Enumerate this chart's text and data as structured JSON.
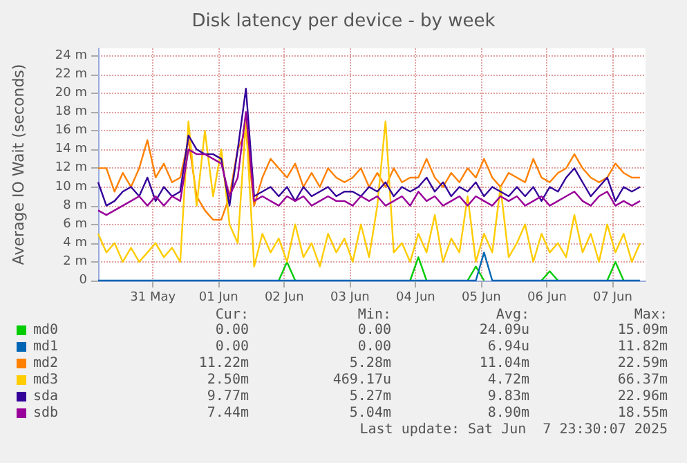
{
  "chart_data": {
    "type": "line",
    "title": "Disk latency per device - by week",
    "ylabel": "Average IO Wait (seconds)",
    "x": [
      "2025-05-30T04:00",
      "2025-05-30T07:00",
      "2025-05-30T10:00",
      "2025-05-30T13:00",
      "2025-05-30T16:00",
      "2025-05-30T19:00",
      "2025-05-30T22:00",
      "2025-05-31T01:00",
      "2025-05-31T04:00",
      "2025-05-31T07:00",
      "2025-05-31T10:00",
      "2025-05-31T13:00",
      "2025-05-31T16:00",
      "2025-05-31T19:00",
      "2025-05-31T22:00",
      "2025-06-01T01:00",
      "2025-06-01T04:00",
      "2025-06-01T07:00",
      "2025-06-01T10:00",
      "2025-06-01T13:00",
      "2025-06-01T16:00",
      "2025-06-01T19:00",
      "2025-06-01T22:00",
      "2025-06-02T01:00",
      "2025-06-02T04:00",
      "2025-06-02T07:00",
      "2025-06-02T10:00",
      "2025-06-02T13:00",
      "2025-06-02T16:00",
      "2025-06-02T19:00",
      "2025-06-02T22:00",
      "2025-06-03T01:00",
      "2025-06-03T04:00",
      "2025-06-03T07:00",
      "2025-06-03T10:00",
      "2025-06-03T13:00",
      "2025-06-03T16:00",
      "2025-06-03T19:00",
      "2025-06-03T22:00",
      "2025-06-04T01:00",
      "2025-06-04T04:00",
      "2025-06-04T07:00",
      "2025-06-04T10:00",
      "2025-06-04T13:00",
      "2025-06-04T16:00",
      "2025-06-04T19:00",
      "2025-06-04T22:00",
      "2025-06-05T01:00",
      "2025-06-05T04:00",
      "2025-06-05T07:00",
      "2025-06-05T10:00",
      "2025-06-05T13:00",
      "2025-06-05T16:00",
      "2025-06-05T19:00",
      "2025-06-05T22:00",
      "2025-06-06T01:00",
      "2025-06-06T04:00",
      "2025-06-06T07:00",
      "2025-06-06T10:00",
      "2025-06-06T13:00",
      "2025-06-06T16:00",
      "2025-06-06T19:00",
      "2025-06-06T22:00",
      "2025-06-07T01:00",
      "2025-06-07T04:00",
      "2025-06-07T07:00",
      "2025-06-07T10:00"
    ],
    "series": [
      {
        "name": "md0",
        "color": "#00cc00",
        "values": [
          null,
          null,
          null,
          null,
          null,
          null,
          null,
          null,
          null,
          null,
          null,
          null,
          null,
          null,
          null,
          null,
          null,
          null,
          null,
          null,
          null,
          null,
          0,
          2,
          0,
          null,
          null,
          null,
          null,
          null,
          null,
          null,
          null,
          null,
          null,
          null,
          null,
          null,
          0,
          2.5,
          0,
          null,
          null,
          null,
          null,
          0,
          1.5,
          0,
          null,
          null,
          null,
          null,
          null,
          null,
          0,
          1,
          0,
          null,
          null,
          null,
          null,
          null,
          0,
          2,
          0,
          null,
          null
        ]
      },
      {
        "name": "md1",
        "color": "#0066b3",
        "values": [
          0,
          0,
          0,
          0,
          0,
          0,
          0,
          0,
          0,
          0,
          0,
          0,
          0,
          0,
          0,
          0,
          0,
          0,
          0,
          0,
          0,
          0,
          0,
          0,
          0,
          0,
          0,
          0,
          0,
          0,
          0,
          0,
          0,
          0,
          0,
          0,
          0,
          0,
          0,
          0,
          0,
          0,
          0,
          0,
          0,
          0,
          0,
          3,
          0,
          0,
          0,
          0,
          0,
          0,
          0,
          0,
          0,
          0,
          0,
          0,
          0,
          0,
          0,
          0,
          0,
          0,
          0
        ]
      },
      {
        "name": "md2",
        "color": "#ff8000",
        "values": [
          12,
          12,
          9.5,
          11.5,
          10,
          12,
          15,
          11,
          12.5,
          10.5,
          11,
          15,
          9,
          7.5,
          6.5,
          6.5,
          9,
          14,
          16,
          8,
          11,
          13,
          12,
          11,
          12.5,
          10,
          11.5,
          10,
          12,
          11,
          10.5,
          11,
          12,
          10,
          11.5,
          10,
          12,
          10.5,
          11,
          11,
          13,
          11,
          10,
          11.5,
          10.5,
          12,
          11,
          13,
          11,
          10,
          11.5,
          11,
          10.5,
          13,
          11,
          10.5,
          11.5,
          12,
          13.5,
          12,
          11,
          10.5,
          11,
          12.5,
          11.5,
          11,
          11
        ]
      },
      {
        "name": "md3",
        "color": "#ffcc00",
        "values": [
          5,
          3,
          4,
          2,
          3.5,
          2,
          3,
          4,
          2.5,
          3.5,
          2,
          17,
          8,
          16,
          9,
          14,
          6,
          4,
          17,
          1.5,
          5,
          3,
          4.5,
          2,
          6,
          2.5,
          4,
          1.5,
          5,
          3,
          4.5,
          2,
          6,
          2.5,
          8,
          17,
          3,
          4,
          2,
          5,
          3,
          7,
          2,
          4.5,
          3,
          9,
          2,
          5,
          3,
          10,
          2.5,
          4,
          6,
          2,
          5,
          3,
          4,
          2.5,
          7,
          3,
          5,
          2,
          6,
          3,
          5,
          2,
          4
        ]
      },
      {
        "name": "sda",
        "color": "#330099",
        "values": [
          10.5,
          8,
          8.5,
          9.5,
          10,
          9,
          11,
          8.5,
          10,
          9,
          9.5,
          15.5,
          14,
          13.5,
          13.5,
          13,
          8,
          14,
          20.5,
          9,
          9.5,
          10,
          9,
          10,
          8.5,
          10,
          9,
          9.5,
          10,
          9,
          9.5,
          9.5,
          9,
          10,
          9.5,
          10.5,
          9,
          10,
          9.5,
          10,
          11,
          9.5,
          10.5,
          9,
          10,
          9.5,
          10.5,
          9,
          10,
          9.5,
          9,
          10,
          9,
          10,
          8.5,
          10,
          9.5,
          11,
          12,
          10.5,
          9,
          10,
          11,
          8.5,
          10,
          9.5,
          10
        ]
      },
      {
        "name": "sdb",
        "color": "#990099",
        "values": [
          7.5,
          7,
          7.5,
          8,
          8.5,
          9,
          8,
          9,
          8,
          9,
          8.5,
          14,
          13.5,
          13.5,
          13,
          12.5,
          9,
          11,
          18,
          8.5,
          9,
          8.5,
          8,
          9,
          8.5,
          9,
          8,
          8.5,
          9,
          8.5,
          8.5,
          8,
          9,
          8.5,
          9,
          8,
          8.5,
          9,
          8,
          9.5,
          8.5,
          9,
          8,
          8.5,
          9,
          8,
          9,
          8.5,
          8,
          9,
          8.5,
          9,
          8,
          8.5,
          9,
          8,
          8.5,
          9,
          9.5,
          8.5,
          8,
          9,
          9.5,
          8,
          8.5,
          8,
          8.5
        ]
      }
    ],
    "xlim": [
      "2025-05-30T04:00",
      "2025-06-07T12:00"
    ],
    "xticks": [
      {
        "value": "2025-05-31",
        "label": "31 May"
      },
      {
        "value": "2025-06-01",
        "label": "01 Jun"
      },
      {
        "value": "2025-06-02",
        "label": "02 Jun"
      },
      {
        "value": "2025-06-03",
        "label": "03 Jun"
      },
      {
        "value": "2025-06-04",
        "label": "04 Jun"
      },
      {
        "value": "2025-06-05",
        "label": "05 Jun"
      },
      {
        "value": "2025-06-06",
        "label": "06 Jun"
      },
      {
        "value": "2025-06-07",
        "label": "07 Jun"
      }
    ],
    "ylim": [
      0,
      24.8
    ],
    "yticks": [
      0,
      {
        "value": 2,
        "label": "2 m"
      },
      {
        "value": 4,
        "label": "4 m"
      },
      {
        "value": 6,
        "label": "6 m"
      },
      {
        "value": 8,
        "label": "8 m"
      },
      {
        "value": 10,
        "label": "10 m"
      },
      {
        "value": 12,
        "label": "12 m"
      },
      {
        "value": 14,
        "label": "14 m"
      },
      {
        "value": 16,
        "label": "16 m"
      },
      {
        "value": 18,
        "label": "18 m"
      },
      {
        "value": 20,
        "label": "20 m"
      },
      {
        "value": 22,
        "label": "22 m"
      },
      {
        "value": 24,
        "label": "24 m"
      }
    ],
    "annotations": [
      "Cur:",
      "Min:",
      "Avg:",
      "Max:",
      "0.00",
      "0.00",
      "24.09u",
      "15.09m",
      "0.00",
      "0.00",
      "6.94u",
      "11.82m",
      "11.22m",
      "5.28m",
      "11.04m",
      "22.59m",
      "2.50m",
      "469.17u",
      "4.72m",
      "66.37m",
      "9.77m",
      "5.27m",
      "9.83m",
      "22.96m",
      "7.44m",
      "5.04m",
      "8.90m",
      "18.55m",
      "Last update: Sat Jun  7 23:30:07 2025"
    ],
    "grid": true,
    "legend": "bottom left",
    "marker": "none",
    "line_style": "solid"
  }
}
